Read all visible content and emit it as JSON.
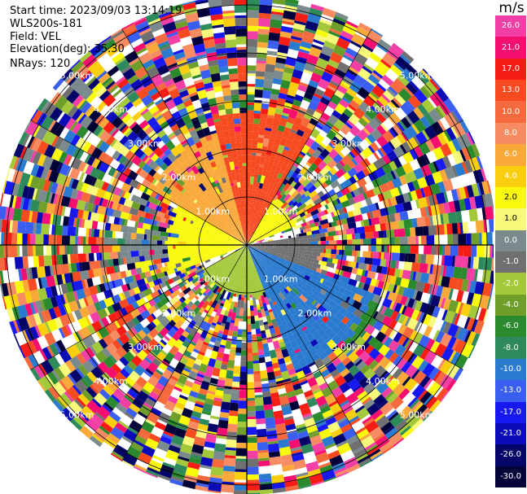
{
  "header": {
    "start_time": "Start time: 2023/09/03 13:14:19",
    "instrument": "WLS200s-181",
    "field": "Field: VEL",
    "elevation": "Elevation(deg): 35.30",
    "nrays": "NRays: 120"
  },
  "colorbar": {
    "unit": "m/s",
    "levels": [
      {
        "label": "26.0",
        "color": "#f23fa6"
      },
      {
        "label": "21.0",
        "color": "#f50f70"
      },
      {
        "label": "17.0",
        "color": "#f61d17"
      },
      {
        "label": "13.0",
        "color": "#f64a20"
      },
      {
        "label": "10.0",
        "color": "#f56a3d"
      },
      {
        "label": "8.0",
        "color": "#f78c62"
      },
      {
        "label": "6.0",
        "color": "#f9a93a"
      },
      {
        "label": "4.0",
        "color": "#f9ce0f"
      },
      {
        "label": "2.0",
        "color": "#f9f90d"
      },
      {
        "label": "1.0",
        "color": "#f8f87a"
      },
      {
        "label": "0.0",
        "color": "#7b8b8d"
      },
      {
        "label": "-1.0",
        "color": "#707070"
      },
      {
        "label": "-2.0",
        "color": "#a3c83a"
      },
      {
        "label": "-4.0",
        "color": "#6f9f2a"
      },
      {
        "label": "-6.0",
        "color": "#2a8a2d"
      },
      {
        "label": "-8.0",
        "color": "#2e8a5a"
      },
      {
        "label": "-10.0",
        "color": "#2a7ad0"
      },
      {
        "label": "-13.0",
        "color": "#3a5ff0"
      },
      {
        "label": "-17.0",
        "color": "#1818f0"
      },
      {
        "label": "-21.0",
        "color": "#0b0bb8"
      },
      {
        "label": "-26.0",
        "color": "#06066a"
      },
      {
        "label": "-30.0",
        "color": "#03033a"
      }
    ]
  },
  "chart_data": {
    "type": "heatmap",
    "projection": "polar PPI",
    "field": "VEL",
    "units": "m/s",
    "elevation_deg": 35.3,
    "nrays": 120,
    "range_rings": [
      {
        "label": "1.00km"
      },
      {
        "label": "2.00km"
      },
      {
        "label": "3.00km"
      },
      {
        "label": "4.00km"
      },
      {
        "label": "5.00km"
      }
    ],
    "sectors": [
      {
        "from_deg": 300,
        "to_deg": 345,
        "range_max_km": 2.3,
        "value": 6.0
      },
      {
        "from_deg": 345,
        "to_deg": 30,
        "range_max_km": 2.7,
        "value": 13.0
      },
      {
        "from_deg": 250,
        "to_deg": 300,
        "range_max_km": 1.6,
        "value": 2.0
      },
      {
        "from_deg": 260,
        "to_deg": 280,
        "range_max_km": 2.5,
        "value": 0.0
      },
      {
        "from_deg": 30,
        "to_deg": 70,
        "range_max_km": 1.0,
        "value": 2.0
      },
      {
        "from_deg": 80,
        "to_deg": 110,
        "range_max_km": 1.5,
        "value": -1.0
      },
      {
        "from_deg": 110,
        "to_deg": 160,
        "range_max_km": 2.8,
        "value": -10.0
      },
      {
        "from_deg": 115,
        "to_deg": 135,
        "range_max_km": 3.0,
        "value": -6.0
      },
      {
        "from_deg": 160,
        "to_deg": 240,
        "range_max_km": 1.0,
        "value": -2.0
      }
    ],
    "outer_noise": {
      "start_km": 2.5,
      "end_km": 5.2,
      "values": "random across full scale"
    }
  }
}
